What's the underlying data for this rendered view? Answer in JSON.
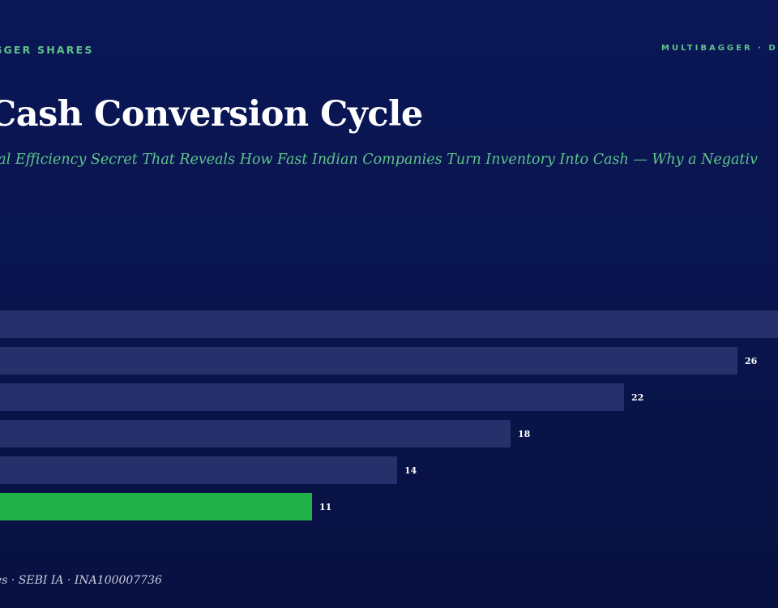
{
  "header": {
    "brand": "GGER SHARES",
    "tag_right": "MULTIBAGGER · D"
  },
  "title": "Cash Conversion Cycle",
  "subtitle": "nal Efficiency Secret That Reveals How Fast Indian Companies Turn Inventory Into Cash — Why a Negativ",
  "footer": {
    "text": "es · SEBI IA · INA100007736"
  },
  "colors": {
    "bar_default": "#27306b",
    "bar_highlight": "#22b24c",
    "accent": "#5ec58a"
  },
  "chart_data": {
    "type": "bar",
    "orientation": "horizontal",
    "values": [
      null,
      26,
      22,
      18,
      14,
      11
    ],
    "data_labels": [
      "",
      "26",
      "22",
      "18",
      "14",
      "11"
    ],
    "highlight_index": 5,
    "grid": false,
    "legend": "none"
  }
}
